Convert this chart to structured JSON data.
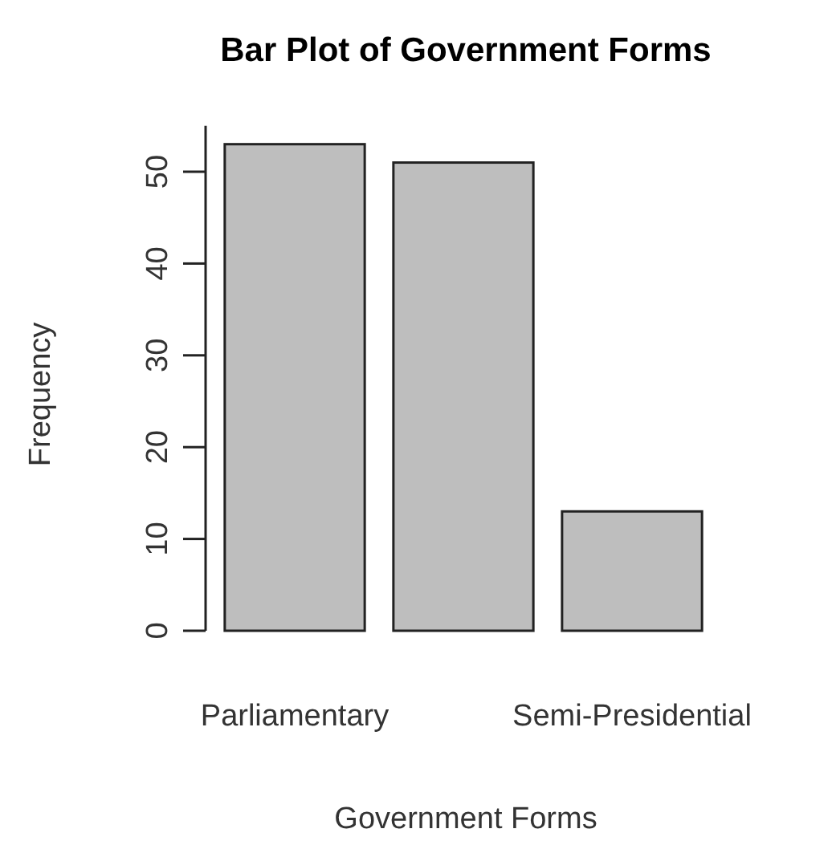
{
  "chart_data": {
    "type": "bar",
    "title": "Bar Plot of Government Forms",
    "xlabel": "Government Forms",
    "ylabel": "Frequency",
    "categories": [
      "Parliamentary",
      null,
      "Semi-Presidential"
    ],
    "values": [
      53,
      51,
      13
    ],
    "color": "#bebebe",
    "ylim": [
      0,
      55
    ],
    "yticks": [
      0,
      10,
      20,
      30,
      40,
      50
    ],
    "grid": false
  }
}
